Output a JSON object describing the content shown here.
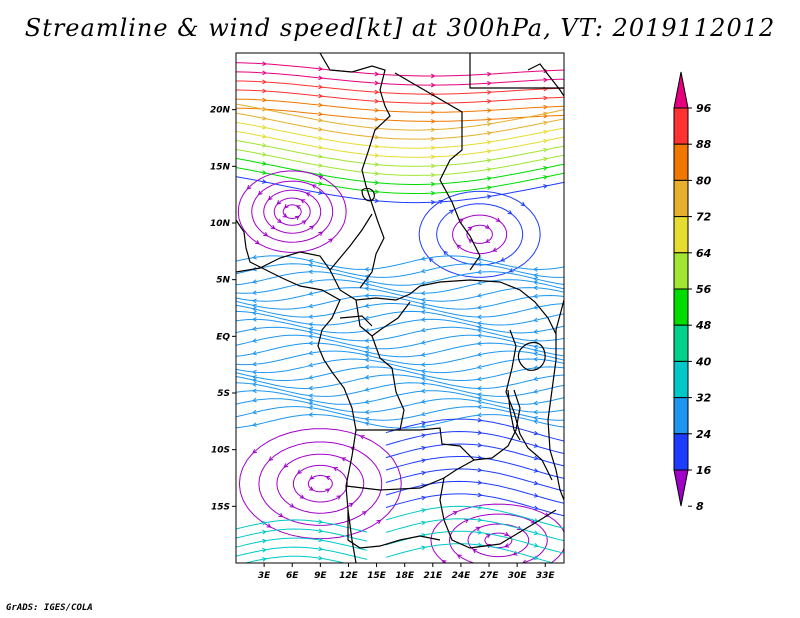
{
  "title": "Streamline & wind speed[kt] at 300hPa, VT: 2019112012",
  "footer": "GrADS: IGES/COLA",
  "map": {
    "lon_range": [
      0,
      35
    ],
    "lat_range": [
      -20,
      25
    ],
    "lat_ticks": [
      {
        "value": 20,
        "label": "20N"
      },
      {
        "value": 15,
        "label": "15N"
      },
      {
        "value": 10,
        "label": "10N"
      },
      {
        "value": 5,
        "label": "5N"
      },
      {
        "value": 0,
        "label": "EQ"
      },
      {
        "value": -5,
        "label": "5S"
      },
      {
        "value": -10,
        "label": "10S"
      },
      {
        "value": -15,
        "label": "15S"
      }
    ],
    "lon_ticks": [
      {
        "value": 3,
        "label": "3E"
      },
      {
        "value": 6,
        "label": "6E"
      },
      {
        "value": 9,
        "label": "9E"
      },
      {
        "value": 12,
        "label": "12E"
      },
      {
        "value": 15,
        "label": "15E"
      },
      {
        "value": 18,
        "label": "18E"
      },
      {
        "value": 21,
        "label": "21E"
      },
      {
        "value": 24,
        "label": "24E"
      },
      {
        "value": 27,
        "label": "27E"
      },
      {
        "value": 30,
        "label": "30E"
      },
      {
        "value": 33,
        "label": "33E"
      }
    ]
  },
  "colorbar": {
    "levels": [
      "96",
      "88",
      "80",
      "72",
      "64",
      "56",
      "48",
      "40",
      "32",
      "24",
      "16",
      "8"
    ],
    "colors": [
      "#e6007e",
      "#ff3232",
      "#f07800",
      "#e6af2d",
      "#e6dc32",
      "#a0e632",
      "#00dc00",
      "#00d28c",
      "#00c8c8",
      "#1e96f0",
      "#1e3cff",
      "#a000c8"
    ]
  }
}
